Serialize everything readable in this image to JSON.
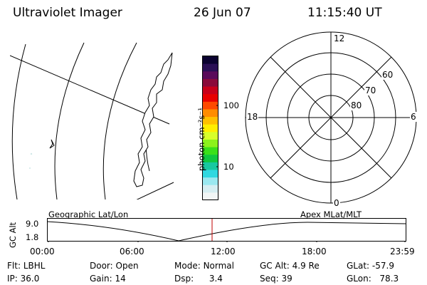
{
  "header": {
    "title": "Ultraviolet Imager",
    "date": "26 Jun 07",
    "time": "11:15:40 UT"
  },
  "colorbar": {
    "unit_label": "photon cm⁻²s⁻¹",
    "tick_100": "100",
    "tick_10": "10",
    "colors": [
      "#0b0230",
      "#2a0f55",
      "#5a0a5a",
      "#8a0a3a",
      "#c8001a",
      "#e80000",
      "#ff4a00",
      "#ff8c00",
      "#ffc000",
      "#ffee00",
      "#d8ff2a",
      "#8cf21c",
      "#3ae01a",
      "#10c840",
      "#18c8a0",
      "#30d8e0",
      "#9ae8f0",
      "#d6eef2",
      "#f2f6f6"
    ]
  },
  "polar": {
    "mlt_top": "12",
    "mlt_bottom": "0",
    "mlt_left": "18",
    "mlt_right": "6",
    "lat_60": "60",
    "lat_70": "70",
    "lat_80": "80"
  },
  "timeline": {
    "left_label": "Geographic Lat/Lon",
    "right_label": "Apex MLat/MLT",
    "y_axis_label": "GC Alt",
    "y_top": "9.0",
    "y_bottom": "1.8",
    "ticks": [
      "00:00",
      "06:00",
      "12:00",
      "18:00",
      "23:59"
    ],
    "cursor_time": "11:15:40",
    "accent_color": "#c00000"
  },
  "info": {
    "filter_label": "Flt:",
    "filter_value": "LBHL",
    "ip_label": "IP:",
    "ip_value": "36.0",
    "door_label": "Door:",
    "door_value": "Open",
    "gain_label": "Gain:",
    "gain_value": "14",
    "mode_label": "Mode:",
    "mode_value": "Normal",
    "dsp_label": "Dsp:",
    "dsp_value": "3.4",
    "gcalt_label": "GC Alt:",
    "gcalt_value": "4.9 Re",
    "seq_label": "Seq:",
    "seq_value": "39",
    "glat_label": "GLat:",
    "glat_value": "-57.9",
    "glon_label": "GLon:",
    "glon_value": "78.3"
  }
}
